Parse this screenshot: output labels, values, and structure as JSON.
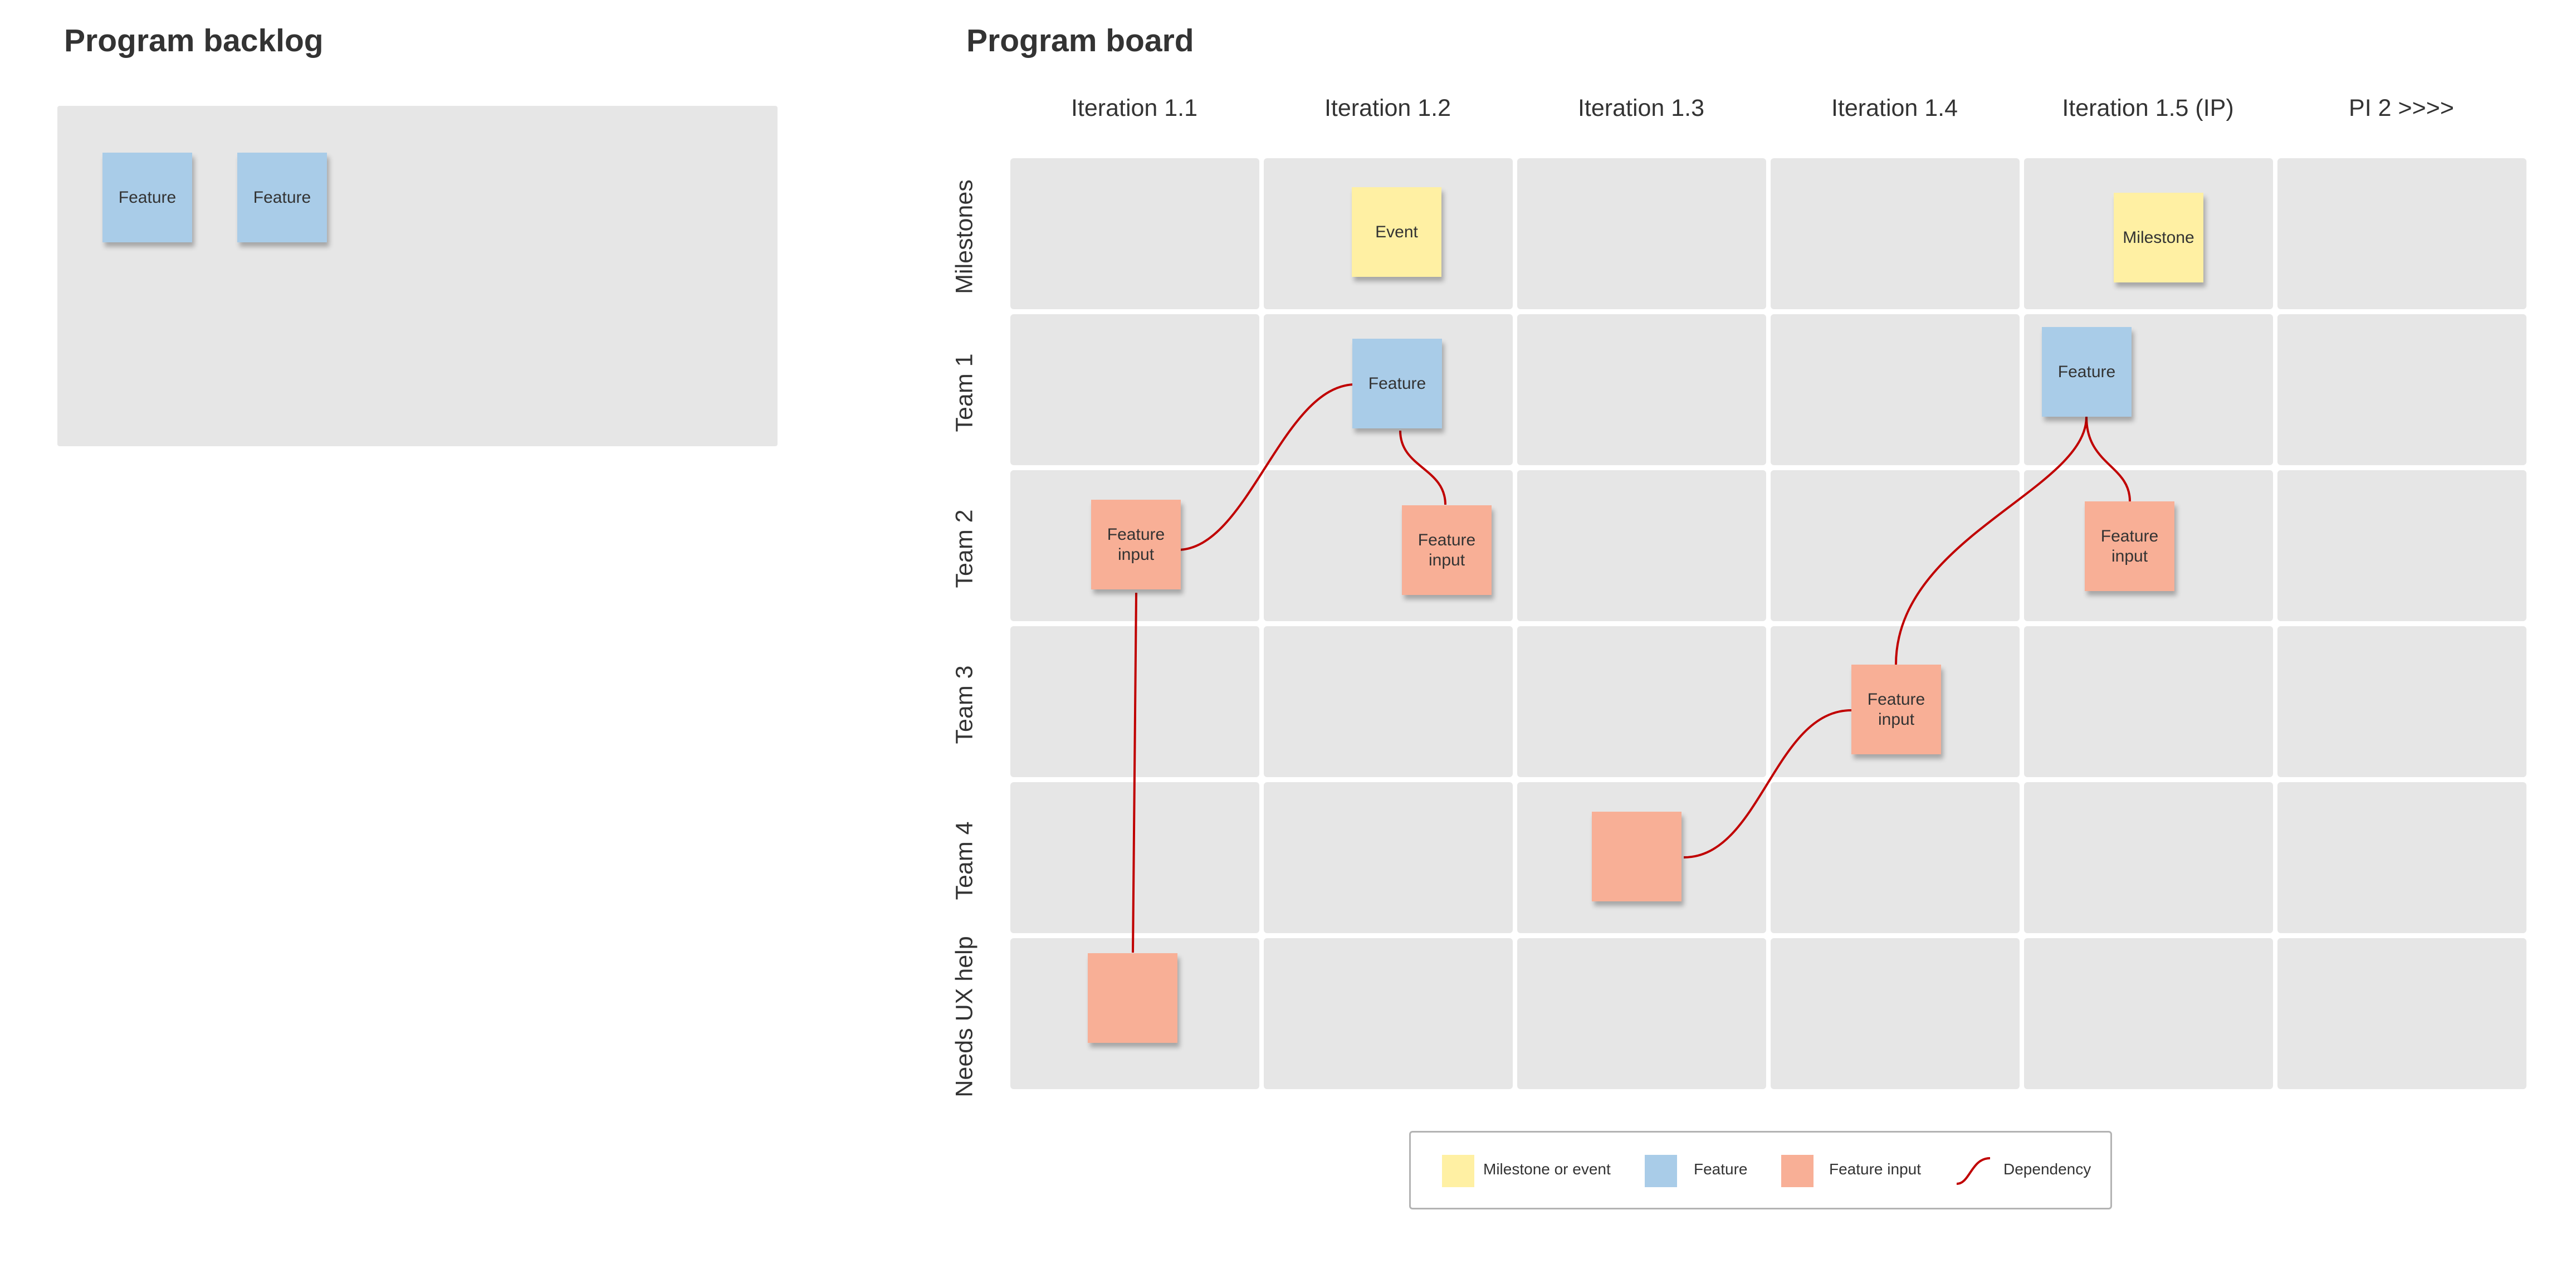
{
  "backlog": {
    "title": "Program backlog",
    "notes": [
      "Feature",
      "Feature"
    ]
  },
  "board": {
    "title": "Program board",
    "columns": [
      "Iteration 1.1",
      "Iteration 1.2",
      "Iteration 1.3",
      "Iteration 1.4",
      "Iteration 1.5 (IP)",
      "PI 2 >>>>"
    ],
    "rows": [
      "Milestones",
      "Team 1",
      "Team 2",
      "Team 3",
      "Team 4",
      "Needs UX help"
    ],
    "notes": {
      "event": "Event",
      "milestone": "Milestone",
      "feature_team1_i12": "Feature",
      "feature_team1_i15": "Feature",
      "input_team2_i11": "Feature input",
      "input_team2_i12": "Feature input",
      "input_team2_i15": "Feature input",
      "input_team3_i14": "Feature input",
      "input_team4_i13": "",
      "input_ux_i11": ""
    }
  },
  "legend": {
    "milestone_label": "Milestone or event",
    "feature_label": "Feature",
    "input_label": "Feature input",
    "dependency_label": "Dependency"
  },
  "colors": {
    "feature": "#a9cce8",
    "milestone": "#fff0a3",
    "feature_input": "#f8af96",
    "dependency": "#c00000",
    "cell": "#e6e6e6"
  }
}
